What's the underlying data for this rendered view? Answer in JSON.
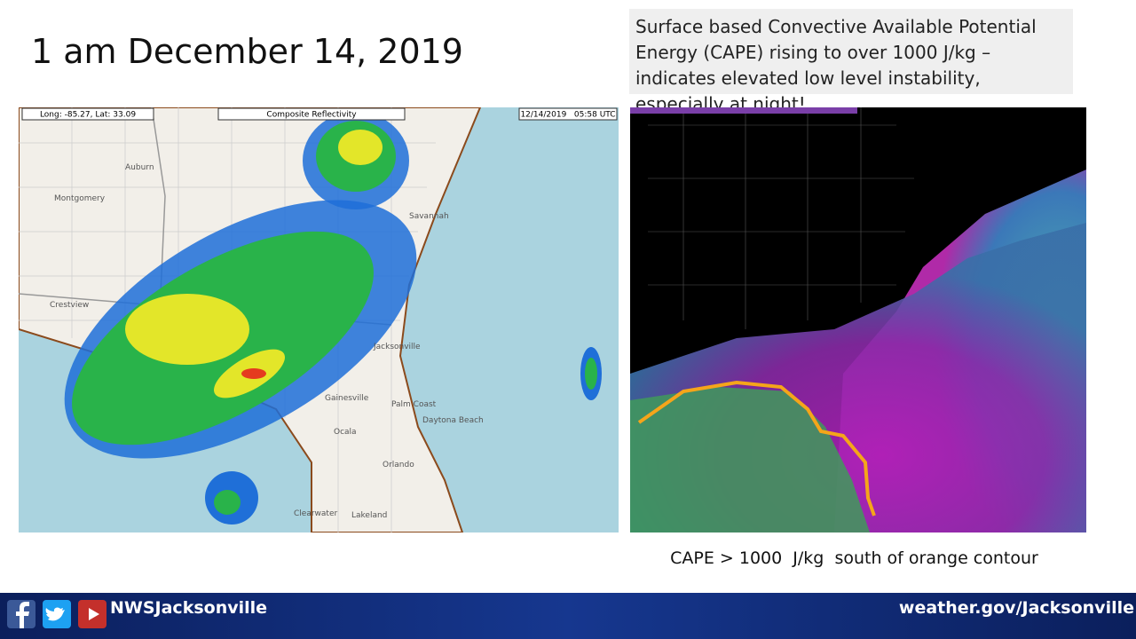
{
  "slide": {
    "title": "1 am December 14, 2019",
    "callout": "Surface based Convective Available Potential Energy (CAPE) rising to over 1000 J/kg – indicates elevated low level instability, especially at night!",
    "radar": {
      "coords": "Long: -85.27, Lat: 33.09",
      "product": "Composite Reflectivity",
      "timestamp": "12/14/2019   05:58 UTC",
      "places": [
        "Montgomery",
        "Auburn",
        "Crestview",
        "Savannah",
        "Jacksonville",
        "Gainesville",
        "Palm Coast",
        "Daytona Beach",
        "Ocala",
        "Orlando",
        "Clearwater",
        "Lakeland"
      ]
    },
    "caption": "CAPE > 1000  J/kg  south of orange contour",
    "footer": {
      "handle": "NWSJacksonville",
      "website": "weather.gov/Jacksonville"
    }
  }
}
